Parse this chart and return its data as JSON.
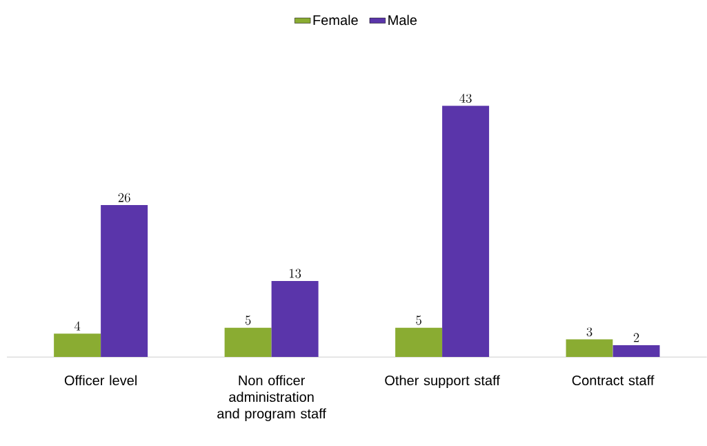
{
  "chart_data": {
    "type": "bar",
    "categories": [
      "Officer level",
      "Non officer administration and program staff",
      "Other support staff",
      "Contract staff"
    ],
    "series": [
      {
        "name": "Female",
        "color": "#8aac32",
        "values": [
          4,
          5,
          5,
          3
        ]
      },
      {
        "name": "Male",
        "color": "#5a35aa",
        "values": [
          26,
          13,
          43,
          2
        ]
      }
    ],
    "data_labels": true,
    "legend": "top"
  }
}
